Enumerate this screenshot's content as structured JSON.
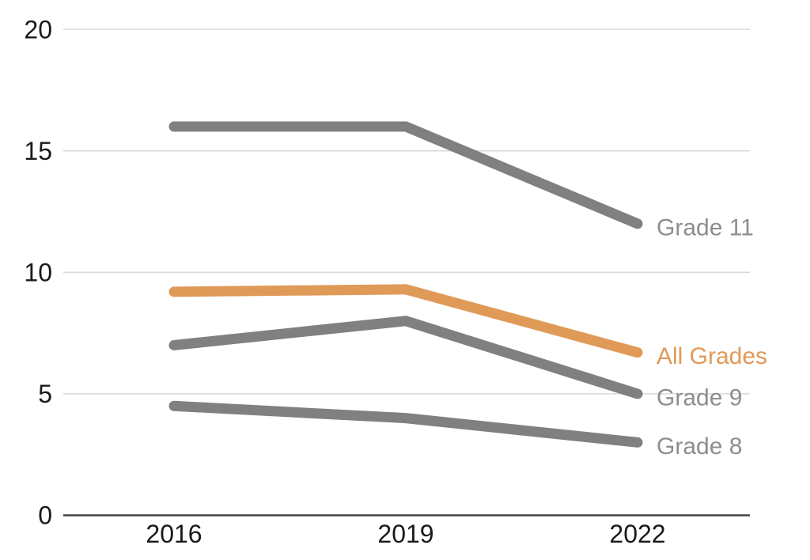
{
  "chart_data": {
    "type": "line",
    "title": "",
    "xlabel": "",
    "ylabel": "",
    "categories": [
      "2016",
      "2019",
      "2022"
    ],
    "x": [
      2016,
      2019,
      2022
    ],
    "series": [
      {
        "name": "Grade 11",
        "values": [
          16,
          16,
          12
        ],
        "color": "#808080",
        "label_color": "#8e8e8e"
      },
      {
        "name": "All Grades",
        "values": [
          9.2,
          9.3,
          6.7
        ],
        "color": "#E09A58",
        "label_color": "#E09A58"
      },
      {
        "name": "Grade 9",
        "values": [
          7,
          8,
          5
        ],
        "color": "#808080",
        "label_color": "#8e8e8e"
      },
      {
        "name": "Grade 8",
        "values": [
          4.5,
          4,
          3
        ],
        "color": "#808080",
        "label_color": "#8e8e8e"
      }
    ],
    "ylim": [
      0,
      20
    ],
    "yticks": [
      0,
      5,
      10,
      15,
      20
    ],
    "grid": true,
    "legend_position": "right-end-of-line"
  },
  "colors": {
    "gridline": "#d9d9d9",
    "axis_line": "#474747",
    "tick_label": "#1a1a1a",
    "background": "#ffffff"
  }
}
